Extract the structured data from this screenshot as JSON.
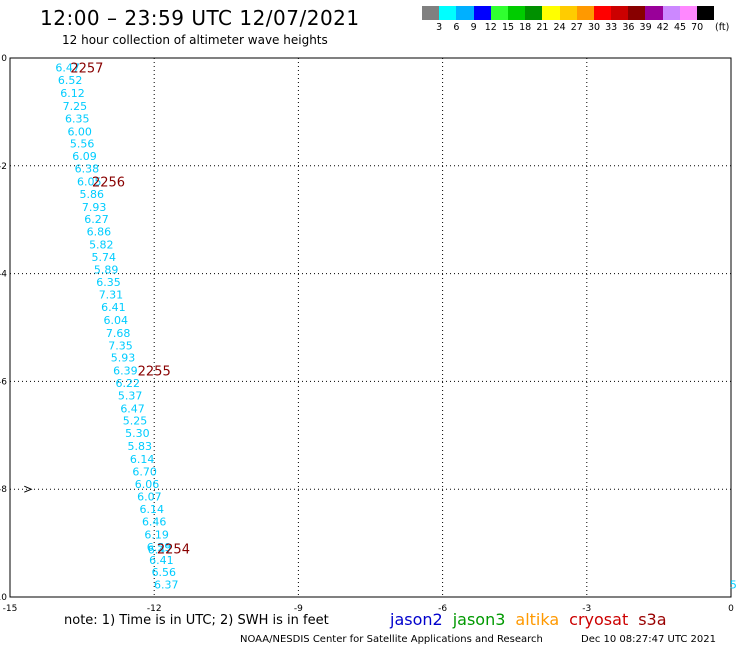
{
  "header": {
    "title": "12:00 – 23:59 UTC 12/07/2021",
    "subtitle": "12 hour collection of altimeter wave heights"
  },
  "legend": {
    "colors": [
      "#808080",
      "#00ffff",
      "#00b0ff",
      "#0000ff",
      "#30ff30",
      "#00cc00",
      "#009000",
      "#ffff00",
      "#ffcc00",
      "#ff9900",
      "#ff0000",
      "#cc0000",
      "#880000",
      "#990099",
      "#cc88ff",
      "#ff88ff",
      "#000000"
    ],
    "ticks": [
      "3",
      "6",
      "9",
      "12",
      "15",
      "18",
      "21",
      "24",
      "27",
      "30",
      "33",
      "36",
      "39",
      "42",
      "45",
      "70"
    ],
    "unit": "(ft)"
  },
  "note": "note: 1) Time is in UTC; 2) SWH is in feet",
  "satellites": [
    {
      "name": "jason2",
      "color": "#0000cc"
    },
    {
      "name": "jason3",
      "color": "#009900"
    },
    {
      "name": "altika",
      "color": "#ff9900"
    },
    {
      "name": "cryosat",
      "color": "#cc0000"
    },
    {
      "name": "s3a",
      "color": "#990000"
    }
  ],
  "footer": {
    "credit": "NOAA/NESDIS Center for Satellite Applications and Research",
    "timestamp": "Dec 10 08:27:47 UTC 2021"
  },
  "chart_data": {
    "type": "scatter",
    "xlim": [
      -15,
      0
    ],
    "ylim": [
      -10,
      0
    ],
    "x_ticks": [
      "-15",
      "-12",
      "-9",
      "-6",
      "-3",
      "0"
    ],
    "y_ticks": [
      "0",
      "-2",
      "-4",
      "-6",
      "-8",
      "-10"
    ],
    "grid": true,
    "point_color": "#00ccff",
    "time_label_color": "#880000",
    "points": [
      {
        "x": -13.8,
        "y": -0.18,
        "v": "6.47"
      },
      {
        "x": -13.75,
        "y": -0.41,
        "v": "6.52"
      },
      {
        "x": -13.7,
        "y": -0.65,
        "v": "6.12"
      },
      {
        "x": -13.65,
        "y": -0.89,
        "v": "7.25"
      },
      {
        "x": -13.6,
        "y": -1.12,
        "v": "6.35"
      },
      {
        "x": -13.55,
        "y": -1.36,
        "v": "6.00"
      },
      {
        "x": -13.5,
        "y": -1.59,
        "v": "5.56"
      },
      {
        "x": -13.45,
        "y": -1.82,
        "v": "6.09"
      },
      {
        "x": -13.4,
        "y": -2.05,
        "v": "6.38"
      },
      {
        "x": -13.35,
        "y": -2.29,
        "v": "6.05"
      },
      {
        "x": -13.3,
        "y": -2.52,
        "v": "5.86"
      },
      {
        "x": -13.25,
        "y": -2.76,
        "v": "7.93"
      },
      {
        "x": -13.2,
        "y": -2.99,
        "v": "6.27"
      },
      {
        "x": -13.15,
        "y": -3.22,
        "v": "6.86"
      },
      {
        "x": -13.1,
        "y": -3.46,
        "v": "5.82"
      },
      {
        "x": -13.05,
        "y": -3.69,
        "v": "5.74"
      },
      {
        "x": -13.0,
        "y": -3.92,
        "v": "5.89"
      },
      {
        "x": -12.95,
        "y": -4.16,
        "v": "6.35"
      },
      {
        "x": -12.9,
        "y": -4.39,
        "v": "7.31"
      },
      {
        "x": -12.85,
        "y": -4.62,
        "v": "6.41"
      },
      {
        "x": -12.8,
        "y": -4.86,
        "v": "6.04"
      },
      {
        "x": -12.75,
        "y": -5.1,
        "v": "7.68"
      },
      {
        "x": -12.7,
        "y": -5.33,
        "v": "7.35"
      },
      {
        "x": -12.65,
        "y": -5.56,
        "v": "5.93"
      },
      {
        "x": -12.6,
        "y": -5.8,
        "v": "6.39"
      },
      {
        "x": -12.55,
        "y": -6.03,
        "v": "6.22"
      },
      {
        "x": -12.5,
        "y": -6.26,
        "v": "5.37"
      },
      {
        "x": -12.45,
        "y": -6.5,
        "v": "6.47"
      },
      {
        "x": -12.4,
        "y": -6.73,
        "v": "5.25"
      },
      {
        "x": -12.35,
        "y": -6.96,
        "v": "5.30"
      },
      {
        "x": -12.3,
        "y": -7.2,
        "v": "5.83"
      },
      {
        "x": -12.25,
        "y": -7.44,
        "v": "6.14"
      },
      {
        "x": -12.2,
        "y": -7.67,
        "v": "6.70"
      },
      {
        "x": -12.15,
        "y": -7.9,
        "v": "6.06"
      },
      {
        "x": -12.1,
        "y": -8.14,
        "v": "6.07"
      },
      {
        "x": -12.05,
        "y": -8.37,
        "v": "6.14"
      },
      {
        "x": -12.0,
        "y": -8.6,
        "v": "6.46"
      },
      {
        "x": -11.95,
        "y": -8.84,
        "v": "6.19"
      },
      {
        "x": -11.9,
        "y": -9.07,
        "v": "6.59"
      },
      {
        "x": -11.88,
        "y": -9.12,
        "v": "6.47"
      },
      {
        "x": -11.85,
        "y": -9.31,
        "v": "6.41"
      },
      {
        "x": -11.8,
        "y": -9.54,
        "v": "6.56"
      },
      {
        "x": -11.75,
        "y": -9.77,
        "v": "6.37"
      },
      {
        "x": 0.05,
        "y": -9.77,
        "v": "5"
      }
    ],
    "time_labels": [
      {
        "x": -13.4,
        "y": -0.18,
        "t": "2257"
      },
      {
        "x": -12.95,
        "y": -2.29,
        "t": "2256"
      },
      {
        "x": -12.0,
        "y": -5.8,
        "t": "2255"
      },
      {
        "x": -11.6,
        "y": -9.1,
        "t": "2254"
      }
    ],
    "markers": [
      {
        "x": -14.62,
        "y": -8.0,
        "shape": "arrow"
      }
    ]
  }
}
